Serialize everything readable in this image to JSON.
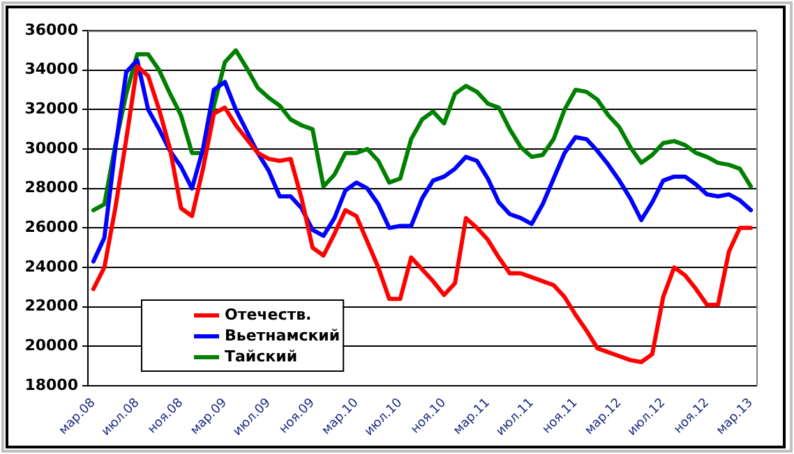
{
  "chart_data": {
    "type": "line",
    "categories": [
      "мар.08",
      null,
      null,
      null,
      "июл.08",
      null,
      null,
      null,
      "ноя.08",
      null,
      null,
      null,
      "мар.09",
      null,
      null,
      null,
      "июл.09",
      null,
      null,
      null,
      "ноя.09",
      null,
      null,
      null,
      "мар.10",
      null,
      null,
      null,
      "июл.10",
      null,
      null,
      null,
      "ноя.10",
      null,
      null,
      null,
      "мар.11",
      null,
      null,
      null,
      "июл.11",
      null,
      null,
      null,
      "ноя.11",
      null,
      null,
      null,
      "мар.12",
      null,
      null,
      null,
      "июл.12",
      null,
      null,
      null,
      "ноя.12",
      null,
      null,
      null,
      "мар.13"
    ],
    "series": [
      {
        "name": "Отечеств.",
        "color": "#ff0000",
        "values": [
          22900,
          24000,
          27000,
          30500,
          34200,
          33700,
          32000,
          30000,
          27000,
          26600,
          29000,
          31800,
          32100,
          31200,
          30500,
          29800,
          29500,
          29400,
          29500,
          27500,
          25000,
          24600,
          25700,
          26900,
          26600,
          25300,
          24000,
          22400,
          22400,
          24500,
          23900,
          23300,
          22600,
          23200,
          26500,
          26000,
          25400,
          24500,
          23700,
          23700,
          23500,
          23300,
          23100,
          22500,
          21600,
          20800,
          19900,
          19700,
          19500,
          19300,
          19200,
          19600,
          22500,
          24000,
          23600,
          22900,
          22100,
          22100,
          24800,
          26000,
          26000
        ]
      },
      {
        "name": "Вьетнамский",
        "color": "#0000ff",
        "values": [
          24300,
          25500,
          30000,
          33900,
          34500,
          32000,
          31000,
          29900,
          29100,
          28000,
          30000,
          33000,
          33400,
          32000,
          30900,
          29800,
          28900,
          27600,
          27600,
          27000,
          25900,
          25600,
          26500,
          27900,
          28300,
          28000,
          27200,
          26000,
          26100,
          26100,
          27500,
          28400,
          28600,
          29000,
          29600,
          29400,
          28500,
          27300,
          26700,
          26500,
          26200,
          27200,
          28500,
          29800,
          30600,
          30500,
          29900,
          29200,
          28400,
          27500,
          26400,
          27300,
          28400,
          28600,
          28600,
          28200,
          27700,
          27600,
          27700,
          27400,
          26900
        ]
      },
      {
        "name": "Тайский",
        "color": "#008000",
        "values": [
          26900,
          27200,
          30200,
          32800,
          34800,
          34800,
          34000,
          32800,
          31700,
          29800,
          29800,
          32200,
          34400,
          35000,
          34100,
          33100,
          32600,
          32200,
          31500,
          31200,
          31000,
          28100,
          28700,
          29800,
          29800,
          30000,
          29400,
          28300,
          28500,
          30500,
          31500,
          31900,
          31300,
          32800,
          33200,
          32900,
          32300,
          32100,
          31000,
          30100,
          29600,
          29700,
          30500,
          32000,
          33000,
          32900,
          32500,
          31700,
          31100,
          30100,
          29300,
          29700,
          30300,
          30400,
          30200,
          29800,
          29600,
          29300,
          29200,
          29000,
          28100
        ]
      }
    ],
    "ylim": [
      18000,
      36000
    ],
    "yticks": [
      18000,
      20000,
      22000,
      24000,
      26000,
      28000,
      30000,
      32000,
      34000,
      36000
    ],
    "grid": "y",
    "legend": "bottom left",
    "marker": "none",
    "line_style": "solid"
  }
}
